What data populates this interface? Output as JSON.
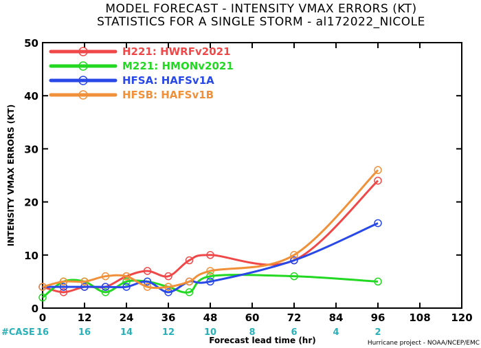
{
  "title_line1": "MODEL FORECAST - INTENSITY VMAX ERRORS (KT)",
  "title_line2": "STATISTICS FOR A SINGLE STORM - al172022_NICOLE",
  "credit": "Hurricane project - NOAA/NCEP/EMC",
  "case_label": "#CASE",
  "colors": {
    "case": "#2ab0b8",
    "H221": "#f04848",
    "M221": "#22d822",
    "HFSA": "#2848e8",
    "HFSB": "#f09038"
  },
  "chart_data": {
    "type": "line",
    "xlabel": "Forecast lead time (hr)",
    "ylabel": "INTENSITY VMAX ERRORS (KT)",
    "xlim": [
      0,
      120
    ],
    "ylim": [
      0,
      50
    ],
    "xticks": [
      "0",
      "12",
      "24",
      "36",
      "48",
      "60",
      "72",
      "84",
      "96",
      "108",
      "120"
    ],
    "yticks": [
      "0",
      "10",
      "20",
      "30",
      "40",
      "50"
    ],
    "grid": false,
    "legend": "top-left",
    "cases": [
      {
        "x": 0,
        "label": "16"
      },
      {
        "x": 12,
        "label": "16"
      },
      {
        "x": 24,
        "label": "14"
      },
      {
        "x": 36,
        "label": "12"
      },
      {
        "x": 48,
        "label": "10"
      },
      {
        "x": 60,
        "label": "8"
      },
      {
        "x": 72,
        "label": "6"
      },
      {
        "x": 84,
        "label": "4"
      },
      {
        "x": 96,
        "label": "2"
      }
    ],
    "series": [
      {
        "name": "H221: HWRFv2021",
        "key": "H221",
        "x": [
          0,
          6,
          12,
          18,
          24,
          30,
          36,
          42,
          48,
          72,
          96
        ],
        "values": [
          4,
          3,
          4,
          4,
          6,
          7,
          6,
          9,
          10,
          9,
          24
        ]
      },
      {
        "name": "M221: HMONv2021",
        "key": "M221",
        "x": [
          0,
          6,
          12,
          18,
          24,
          30,
          36,
          42,
          48,
          72,
          96
        ],
        "values": [
          2,
          5,
          5,
          3,
          5,
          5,
          4,
          3,
          6,
          6,
          5
        ]
      },
      {
        "name": "HFSA: HAFSv1A",
        "key": "HFSA",
        "x": [
          0,
          6,
          12,
          18,
          24,
          30,
          36,
          42,
          48,
          72,
          96
        ],
        "values": [
          4,
          4,
          4,
          4,
          4,
          5,
          3,
          5,
          5,
          9,
          16
        ]
      },
      {
        "name": "HFSB: HAFSv1B",
        "key": "HFSB",
        "x": [
          0,
          6,
          12,
          18,
          24,
          30,
          36,
          42,
          48,
          72,
          96
        ],
        "values": [
          4,
          5,
          5,
          6,
          6,
          4,
          4,
          5,
          7,
          10,
          26
        ]
      }
    ]
  }
}
